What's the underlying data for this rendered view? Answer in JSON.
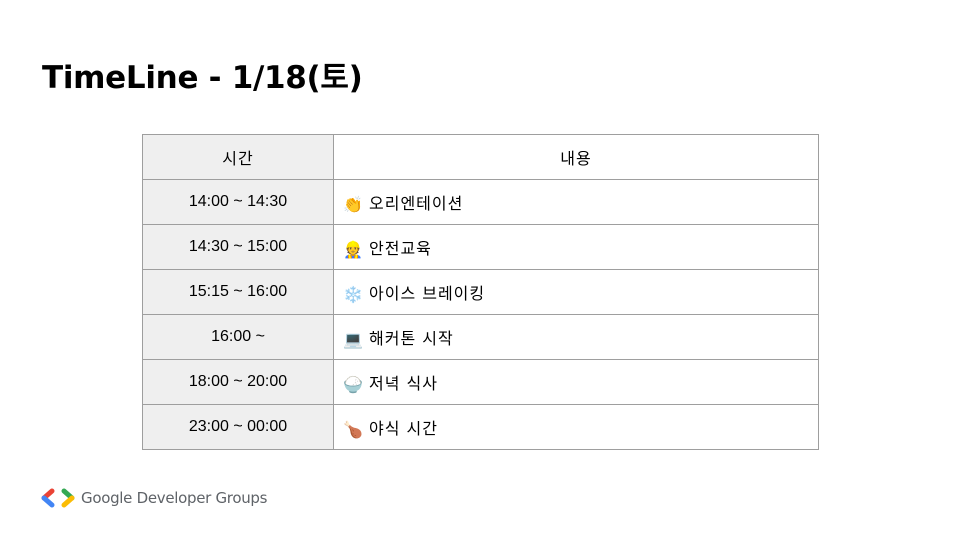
{
  "slide": {
    "title": "TimeLine - 1/18(토)"
  },
  "table": {
    "headers": {
      "time": "시간",
      "content": "내용"
    },
    "rows": [
      {
        "time": "14:00 ~ 14:30",
        "emoji": "👏",
        "emoji_name": "clapping-hands-icon",
        "activity": "오리엔테이션"
      },
      {
        "time": "14:30 ~ 15:00",
        "emoji": "👷",
        "emoji_name": "construction-worker-icon",
        "activity": "안전교육"
      },
      {
        "time": "15:15 ~ 16:00",
        "emoji": "❄️",
        "emoji_name": "snowflake-icon",
        "activity": "아이스 브레이킹"
      },
      {
        "time": "16:00 ~",
        "emoji": "💻",
        "emoji_name": "laptop-icon",
        "activity": "해커톤 시작"
      },
      {
        "time": "18:00 ~ 20:00",
        "emoji": "🍚",
        "emoji_name": "rice-bowl-icon",
        "activity": "저녁 식사"
      },
      {
        "time": "23:00 ~ 00:00",
        "emoji": "🍗",
        "emoji_name": "chicken-leg-icon",
        "activity": "야식 시간"
      }
    ]
  },
  "footer": {
    "logo_text": "Google Developer Groups",
    "logo_colors": {
      "red": "#ea4335",
      "blue": "#4285f4",
      "green": "#34a853",
      "yellow": "#fbbc04"
    }
  }
}
